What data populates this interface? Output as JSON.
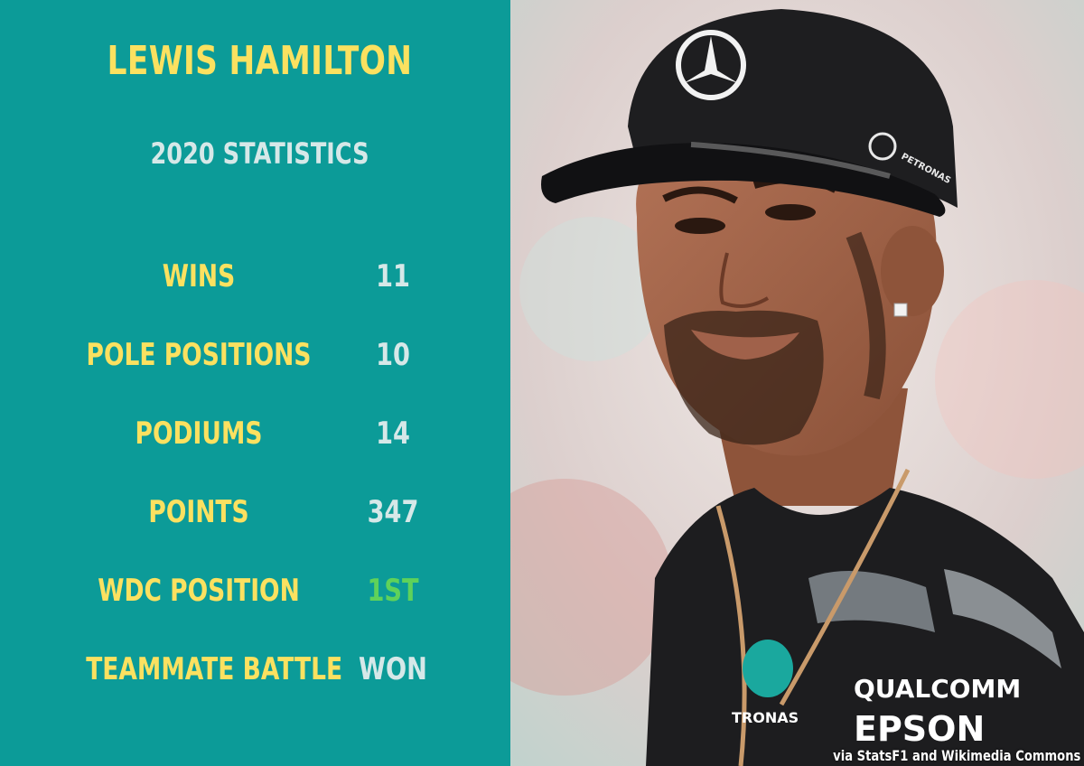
{
  "header": {
    "title": "LEWIS HAMILTON",
    "subtitle": "2020 STATISTICS"
  },
  "stats": [
    {
      "label": "WINS",
      "value": "11"
    },
    {
      "label": "POLE POSITIONS",
      "value": "10"
    },
    {
      "label": "PODIUMS",
      "value": "14"
    },
    {
      "label": "POINTS",
      "value": "347"
    },
    {
      "label": "WDC POSITION",
      "value": "1ST"
    },
    {
      "label": "TEAMMATE BATTLE",
      "value": "WON"
    }
  ],
  "photo": {
    "cap_text": "PETRONAS",
    "shirt_sponsor_1": "QUALCOMM",
    "shirt_sponsor_2": "EPSON",
    "shirt_team": "TRONAS"
  },
  "credit": "via StatsF1 and Wikimedia Commons",
  "colors": {
    "panel_bg": "#0c9b98",
    "label": "#fbe160",
    "value": "#d6e8e8",
    "highlight": "#5fd25a"
  }
}
